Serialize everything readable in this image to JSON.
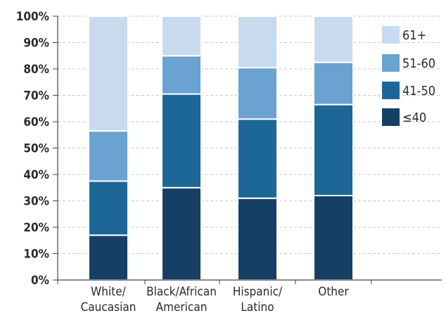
{
  "chart_data": {
    "type": "bar",
    "stacked": true,
    "categories": [
      [
        "White/",
        "Caucasian"
      ],
      [
        "Black/African",
        "American"
      ],
      [
        "Hispanic/",
        "Latino"
      ],
      [
        "Other"
      ]
    ],
    "y_ticks": [
      "0%",
      "10%",
      "20%",
      "30%",
      "40%",
      "50%",
      "60%",
      "70%",
      "80%",
      "90%",
      "100%"
    ],
    "ylim": [
      0,
      100
    ],
    "grid": true,
    "legend_position": "right",
    "series": [
      {
        "name": "≤40",
        "color": "#163f66",
        "values": [
          17,
          35,
          31,
          32
        ]
      },
      {
        "name": "41-50",
        "color": "#1c6797",
        "values": [
          20.5,
          35.5,
          30,
          34.5
        ]
      },
      {
        "name": "51-60",
        "color": "#6aa2d2",
        "values": [
          19,
          14.5,
          19.5,
          16
        ]
      },
      {
        "name": "61+",
        "color": "#c8dbee",
        "values": [
          43.5,
          15,
          19.5,
          17.5
        ]
      }
    ],
    "legend_order": [
      3,
      2,
      1,
      0
    ]
  }
}
